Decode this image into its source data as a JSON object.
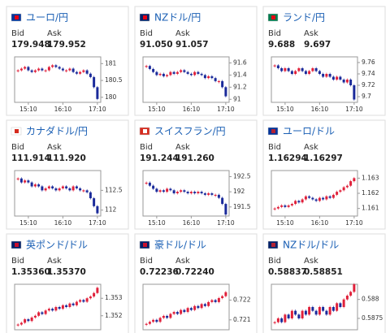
{
  "labels": {
    "bid": "Bid",
    "ask": "Ask"
  },
  "cards": [
    {
      "title": "ユーロ/円",
      "bid": "179.948",
      "ask": "179.952",
      "chart": {
        "ylim": [
          179.85,
          181.2
        ],
        "yticks": [
          181,
          180.5,
          180
        ],
        "xticks": [
          {
            "value": 3,
            "label": "15:10"
          },
          {
            "value": 13,
            "label": "16:10"
          },
          {
            "value": 23,
            "label": "17:10"
          }
        ],
        "closes": [
          180.8,
          180.85,
          180.9,
          180.8,
          180.75,
          180.8,
          180.85,
          180.8,
          180.8,
          180.9,
          180.95,
          180.9,
          180.85,
          180.8,
          180.8,
          180.85,
          180.75,
          180.7,
          180.75,
          180.8,
          180.7,
          180.6,
          180.3,
          179.95
        ]
      }
    },
    {
      "title": "NZドル/円",
      "bid": "91.050",
      "ask": "91.057",
      "chart": {
        "ylim": [
          90.95,
          91.7
        ],
        "yticks": [
          91.6,
          91.4,
          91.2,
          91
        ],
        "xticks": [
          {
            "value": 3,
            "label": "15:10"
          },
          {
            "value": 13,
            "label": "16:10"
          },
          {
            "value": 23,
            "label": "17:10"
          }
        ],
        "closes": [
          91.55,
          91.5,
          91.45,
          91.4,
          91.42,
          91.38,
          91.4,
          91.45,
          91.42,
          91.45,
          91.48,
          91.45,
          91.42,
          91.4,
          91.45,
          91.42,
          91.4,
          91.35,
          91.38,
          91.35,
          91.3,
          91.3,
          91.2,
          91.05
        ]
      }
    },
    {
      "title": "ランド/円",
      "bid": "9.688",
      "ask": "9.697",
      "chart": {
        "ylim": [
          9.69,
          9.77
        ],
        "yticks": [
          9.76,
          9.74,
          9.72,
          9.7
        ],
        "xticks": [
          {
            "value": 3,
            "label": "15:10"
          },
          {
            "value": 13,
            "label": "16:10"
          },
          {
            "value": 23,
            "label": "17:10"
          }
        ],
        "closes": [
          9.755,
          9.75,
          9.745,
          9.75,
          9.745,
          9.74,
          9.745,
          9.75,
          9.745,
          9.74,
          9.745,
          9.75,
          9.745,
          9.74,
          9.735,
          9.74,
          9.735,
          9.73,
          9.735,
          9.73,
          9.725,
          9.73,
          9.72,
          9.695
        ]
      }
    },
    {
      "title": "カナダドル/円",
      "bid": "111.914",
      "ask": "111.920",
      "chart": {
        "ylim": [
          111.85,
          113
        ],
        "yticks": [
          112.5,
          112
        ],
        "xticks": [
          {
            "value": 3,
            "label": "15:10"
          },
          {
            "value": 13,
            "label": "16:10"
          },
          {
            "value": 23,
            "label": "17:10"
          }
        ],
        "closes": [
          112.8,
          112.7,
          112.75,
          112.7,
          112.6,
          112.65,
          112.6,
          112.5,
          112.55,
          112.6,
          112.55,
          112.5,
          112.55,
          112.6,
          112.55,
          112.5,
          112.6,
          112.55,
          112.5,
          112.5,
          112.45,
          112.3,
          112.1,
          111.92
        ]
      }
    },
    {
      "title": "スイスフラン/円",
      "bid": "191.244",
      "ask": "191.260",
      "chart": {
        "ylim": [
          191.2,
          192.7
        ],
        "yticks": [
          192.5,
          192,
          191.5
        ],
        "xticks": [
          {
            "value": 3,
            "label": "15:10"
          },
          {
            "value": 13,
            "label": "16:10"
          },
          {
            "value": 23,
            "label": "17:10"
          }
        ],
        "closes": [
          192.3,
          192.2,
          192.1,
          192,
          192.05,
          192,
          192.1,
          192.05,
          191.95,
          192,
          192.05,
          192,
          191.95,
          192,
          191.95,
          192,
          191.95,
          191.9,
          191.95,
          191.9,
          191.9,
          191.8,
          191.6,
          191.25
        ]
      }
    },
    {
      "title": "ユーロ/ドル",
      "bid": "1.16294",
      "ask": "1.16297",
      "chart": {
        "ylim": [
          1.1605,
          1.1635
        ],
        "yticks": [
          1.163,
          1.162,
          1.161
        ],
        "xticks": [
          {
            "value": 3,
            "label": "15:10"
          },
          {
            "value": 13,
            "label": "16:10"
          },
          {
            "value": 23,
            "label": "17:10"
          }
        ],
        "closes": [
          1.161,
          1.1611,
          1.1612,
          1.1611,
          1.1612,
          1.1613,
          1.1615,
          1.1614,
          1.1616,
          1.1618,
          1.1617,
          1.1616,
          1.1615,
          1.1617,
          1.1616,
          1.1618,
          1.1617,
          1.1619,
          1.1621,
          1.1622,
          1.1624,
          1.1625,
          1.1628,
          1.163
        ]
      }
    },
    {
      "title": "英ポンド/ドル",
      "bid": "1.35360",
      "ask": "1.35370",
      "chart": {
        "ylim": [
          1.3512,
          1.3538
        ],
        "yticks": [
          1.353,
          1.352
        ],
        "closes": [
          1.3515,
          1.3516,
          1.3518,
          1.3517,
          1.3519,
          1.352,
          1.3522,
          1.3521,
          1.3523,
          1.3524,
          1.3523,
          1.3525,
          1.3524,
          1.3526,
          1.3525,
          1.3527,
          1.3526,
          1.3528,
          1.3529,
          1.3528,
          1.353,
          1.3531,
          1.3533,
          1.3536
        ]
      }
    },
    {
      "title": "豪ドル/ドル",
      "bid": "0.72236",
      "ask": "0.72240",
      "chart": {
        "ylim": [
          0.7205,
          0.7228
        ],
        "yticks": [
          0.722,
          0.721
        ],
        "closes": [
          0.7208,
          0.7209,
          0.721,
          0.7209,
          0.7211,
          0.7212,
          0.7211,
          0.7213,
          0.7214,
          0.7213,
          0.7215,
          0.7214,
          0.7216,
          0.7215,
          0.7217,
          0.7216,
          0.7218,
          0.7217,
          0.7219,
          0.722,
          0.7219,
          0.7221,
          0.7222,
          0.7224
        ]
      }
    },
    {
      "title": "NZドル/ドル",
      "bid": "0.58837",
      "ask": "0.58851",
      "chart": {
        "ylim": [
          0.5872,
          0.5884
        ],
        "yticks": [
          0.588,
          0.5875
        ],
        "closes": [
          0.5874,
          0.5875,
          0.5874,
          0.5876,
          0.5875,
          0.5877,
          0.5876,
          0.5875,
          0.5877,
          0.5876,
          0.5878,
          0.5877,
          0.5876,
          0.5878,
          0.5877,
          0.5876,
          0.5878,
          0.5877,
          0.5879,
          0.5878,
          0.588,
          0.5881,
          0.5882,
          0.5884
        ]
      }
    }
  ]
}
